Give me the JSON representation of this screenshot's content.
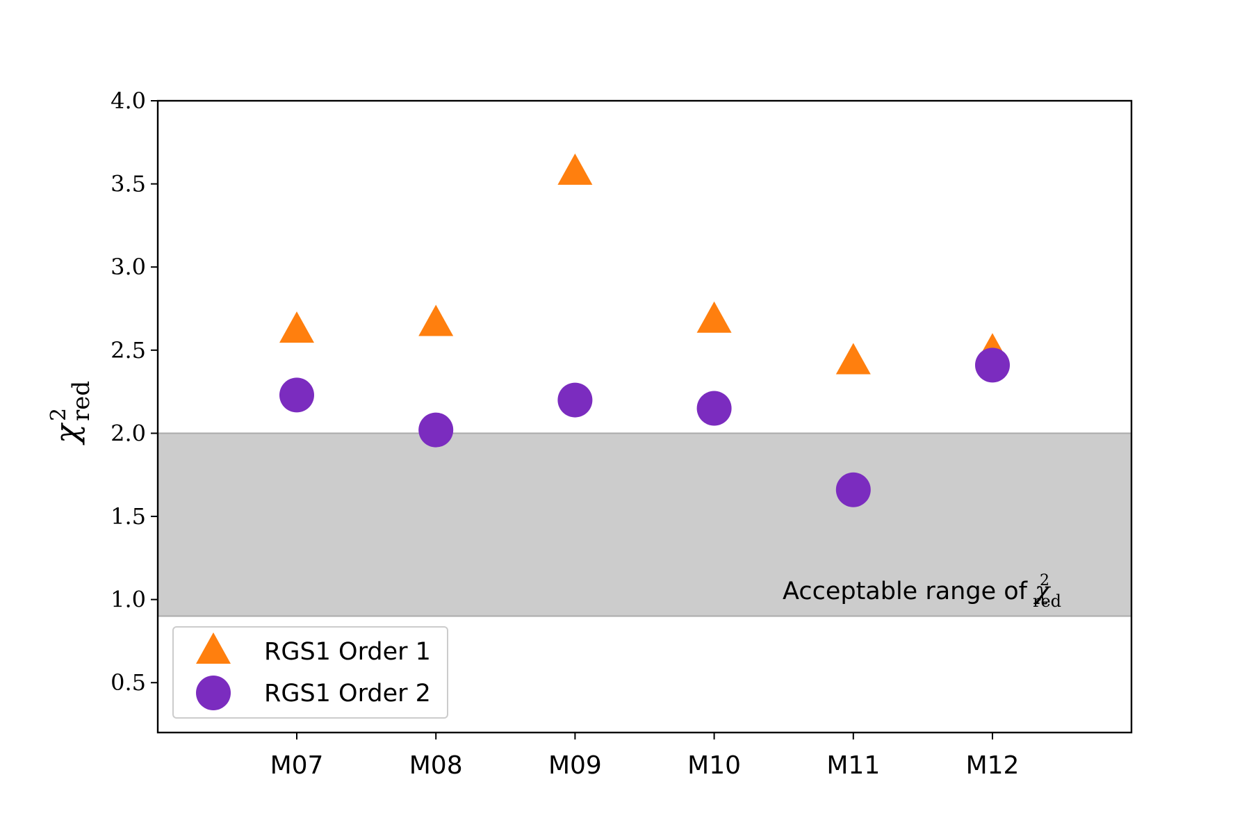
{
  "chart_data": {
    "type": "scatter",
    "categories": [
      "M07",
      "M08",
      "M09",
      "M10",
      "M11",
      "M12"
    ],
    "series": [
      {
        "name": "RGS1 Order 1",
        "marker": "triangle",
        "color": "#ff7f0e",
        "values": [
          2.62,
          2.66,
          3.57,
          2.68,
          2.43,
          2.49
        ]
      },
      {
        "name": "RGS1 Order 2",
        "marker": "circle",
        "color": "#7b2cbf",
        "values": [
          2.23,
          2.02,
          2.2,
          2.15,
          1.66,
          2.41
        ]
      }
    ],
    "ylim": [
      0.2,
      4.0
    ],
    "yticks": [
      0.5,
      1.0,
      1.5,
      2.0,
      2.5,
      3.0,
      3.5,
      4.0
    ],
    "ylabel_symbol": "χ",
    "ylabel_superscript": "2",
    "ylabel_subscript": "red",
    "band": {
      "range": [
        0.9,
        2.0
      ],
      "color": "#cccccc",
      "label_text": "Acceptable range of ",
      "label_symbol": "χ",
      "label_superscript": "2",
      "label_subscript": "red"
    },
    "legend": {
      "placement": "lower-left"
    },
    "grid": false
  }
}
